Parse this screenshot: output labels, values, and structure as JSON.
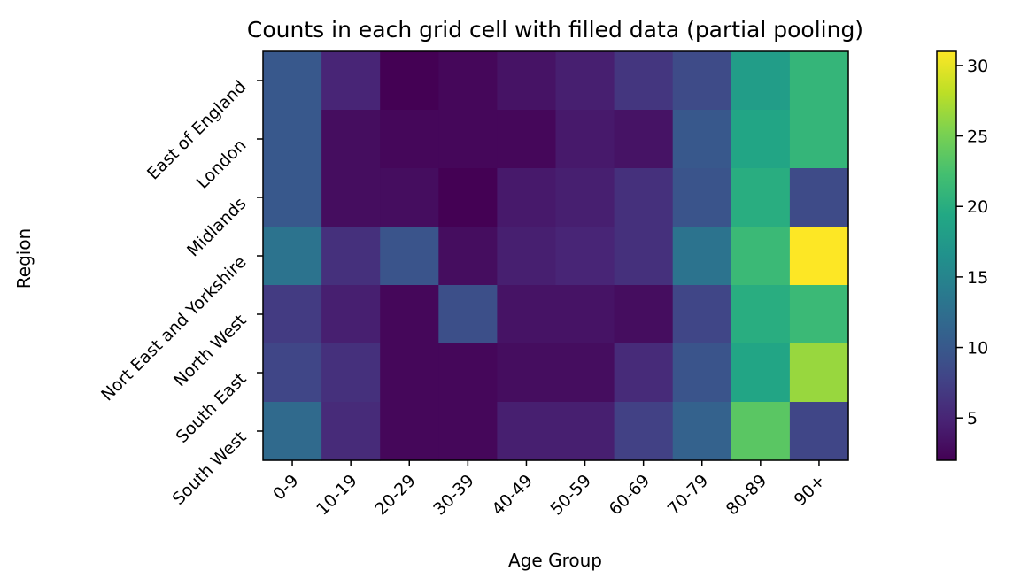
{
  "chart_data": {
    "type": "heatmap",
    "title": "Counts in each grid cell with filled data (partial pooling)",
    "xlabel": "Age Group",
    "ylabel": "Region",
    "x_categories": [
      "0-9",
      "10-19",
      "20-29",
      "30-39",
      "40-49",
      "50-59",
      "60-69",
      "70-79",
      "80-89",
      "90+"
    ],
    "y_categories": [
      "East of England",
      "London",
      "Midlands",
      "Nort East and Yorkshire",
      "North West",
      "South East",
      "South West"
    ],
    "values": [
      [
        10,
        5,
        2,
        2.5,
        3.5,
        4.5,
        6.5,
        8.5,
        18,
        21
      ],
      [
        10,
        3,
        2.5,
        2.5,
        2.5,
        4,
        3.5,
        10,
        19,
        21
      ],
      [
        10,
        3,
        3,
        1.8,
        4,
        4.5,
        6,
        9.5,
        20,
        8.5
      ],
      [
        13,
        6,
        9.5,
        3,
        4.5,
        5,
        6,
        13,
        21.5,
        31
      ],
      [
        7,
        4.5,
        2.5,
        9,
        3.5,
        3.5,
        3,
        8,
        20,
        21.5
      ],
      [
        8,
        6,
        2.5,
        2.5,
        3,
        3,
        5.5,
        9.5,
        19,
        26.5
      ],
      [
        12,
        5.5,
        2.5,
        2.5,
        4.5,
        4.5,
        7.5,
        11,
        23.5,
        8
      ]
    ],
    "colormap": "viridis",
    "colorbar": {
      "range": [
        2,
        31
      ],
      "ticks": [
        5,
        10,
        15,
        20,
        25,
        30
      ]
    }
  }
}
